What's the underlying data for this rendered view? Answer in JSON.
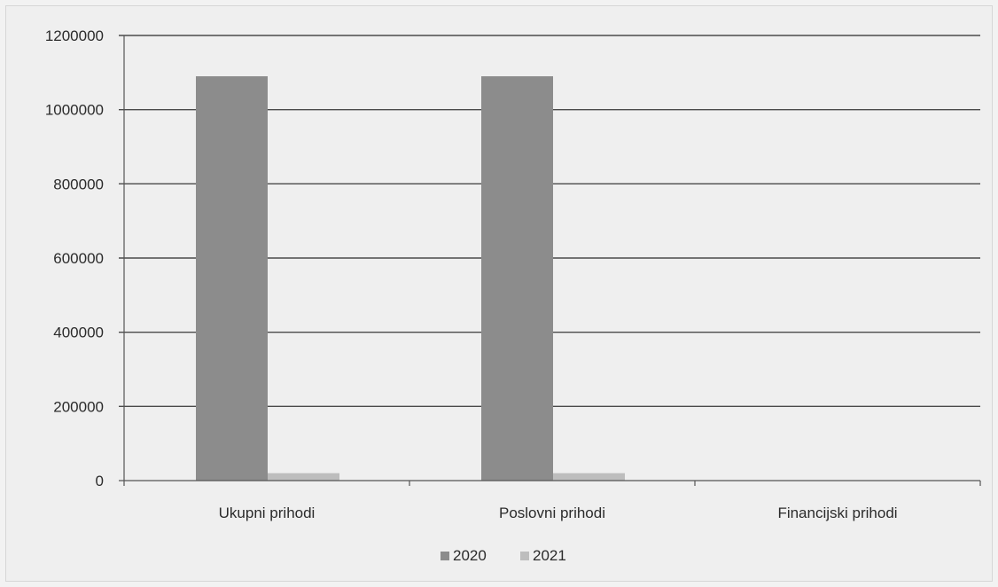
{
  "chart_data": {
    "type": "bar",
    "categories": [
      "Ukupni prihodi",
      "Poslovni prihodi",
      "Financijski prihodi"
    ],
    "series": [
      {
        "name": "2020",
        "values": [
          1090000,
          1090000,
          0
        ],
        "color": "#8c8c8c"
      },
      {
        "name": "2021",
        "values": [
          20000,
          20000,
          0
        ],
        "color": "#bdbdbd"
      }
    ],
    "ylim": [
      0,
      1200000
    ],
    "yticks": [
      0,
      200000,
      400000,
      600000,
      800000,
      1000000,
      1200000
    ],
    "grid": true,
    "legend_position": "bottom"
  }
}
